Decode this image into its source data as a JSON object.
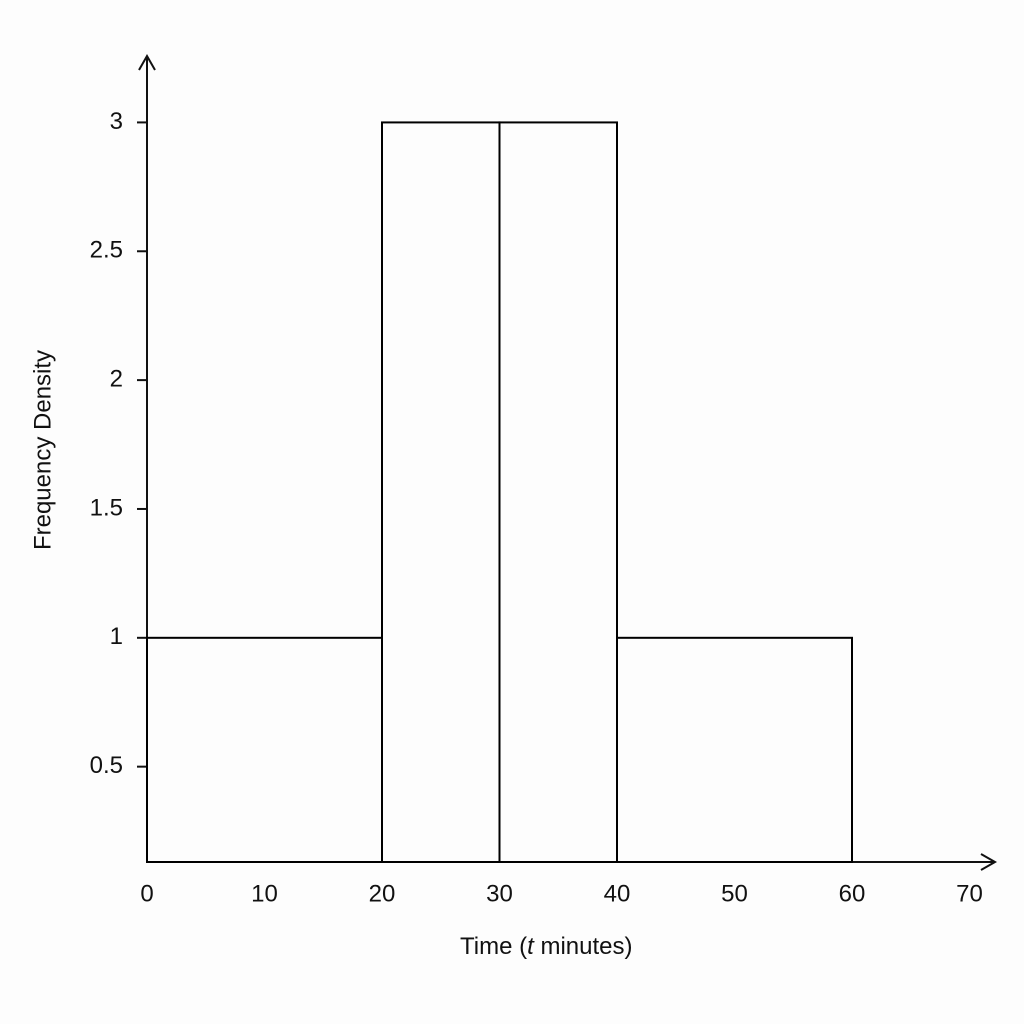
{
  "chart_data": {
    "type": "histogram",
    "xlabel": [
      "Time (",
      "t",
      " minutes)"
    ],
    "ylabel": "Frequency Density",
    "bins": [
      0,
      20,
      30,
      40,
      60
    ],
    "values": [
      1,
      3,
      3,
      1
    ],
    "color": "#000000",
    "xlim": [
      0,
      72
    ],
    "ylim": [
      0.13,
      3.25
    ],
    "xticks": [
      0,
      10,
      20,
      30,
      40,
      50,
      60,
      70
    ],
    "yticks": [
      0.5,
      1,
      1.5,
      2,
      2.5,
      3
    ],
    "grid": false
  }
}
